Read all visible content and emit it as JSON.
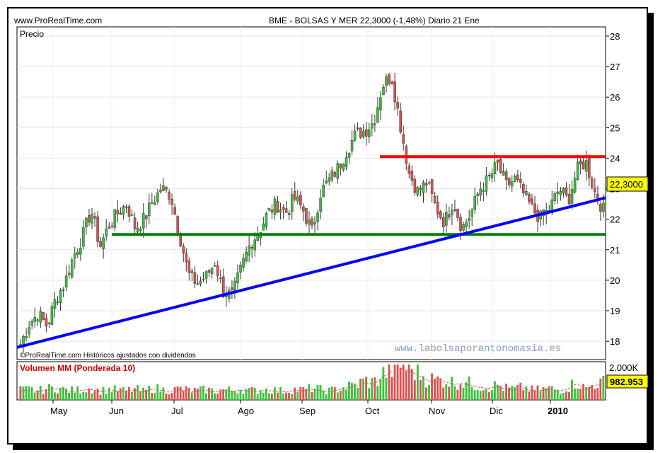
{
  "header": {
    "site": "www.ProRealTime.com",
    "title": "BME - BOLSAS Y MER    22,3000 (-1,48%)   Diario  21 Ene"
  },
  "main_panel": {
    "price_label": "Precio",
    "current_price": "22,3000",
    "footer_note": "©ProRealTime.com  Históricos ajustados con dividendos",
    "watermark": "www.labolsaporantonomasia.es"
  },
  "volume_panel": {
    "label": "Volumen MM (Ponderada 10)",
    "top_tick": "2.000K",
    "current_value": "982.953"
  },
  "colors": {
    "up": "#3cc13c",
    "down": "#d9534f",
    "resistance": "#ff0000",
    "support": "#008000",
    "trend": "#0000ff",
    "watermark": "#8a9cbf"
  },
  "chart_data": {
    "type": "candlestick",
    "x_labels": [
      "May",
      "Jun",
      "Jul",
      "Ago",
      "Sep",
      "Oct",
      "Nov",
      "Dic",
      "2010"
    ],
    "y_ticks": [
      18,
      19,
      20,
      21,
      22,
      23,
      24,
      25,
      26,
      27,
      28
    ],
    "ylim": [
      17.4,
      28.3
    ],
    "series_close_approx": [
      17.9,
      18.6,
      18.9,
      18.5,
      19.4,
      19.9,
      20.8,
      21.4,
      22.3,
      21.1,
      21.8,
      22.2,
      22.5,
      21.7,
      22.0,
      22.6,
      23.0,
      22.8,
      21.5,
      20.2,
      19.9,
      20.1,
      20.6,
      19.6,
      19.5,
      20.4,
      21.2,
      21.6,
      22.2,
      22.5,
      22.2,
      22.7,
      22.3,
      21.6,
      22.9,
      23.3,
      23.7,
      24.3,
      24.8,
      24.9,
      25.2,
      26.4,
      26.7,
      25.1,
      23.5,
      22.9,
      23.2,
      22.4,
      21.9,
      22.6,
      21.7,
      22.2,
      23.0,
      23.3,
      23.8,
      23.1,
      23.3,
      22.8,
      22.3,
      22.0,
      22.4,
      23.0,
      22.6,
      23.6,
      23.9,
      22.9,
      22.3
    ],
    "lines": [
      {
        "name": "resistance",
        "start": [
          "Oct",
          24.05
        ],
        "end": [
          "2010+",
          24.05
        ]
      },
      {
        "name": "support",
        "start": [
          "Jun",
          21.5
        ],
        "end": [
          "2010+",
          21.5
        ]
      },
      {
        "name": "trend",
        "start": [
          "May-",
          17.8
        ],
        "end": [
          "2010+",
          22.7
        ]
      }
    ],
    "volume_approx": [
      0.28,
      0.3,
      0.26,
      0.32,
      0.35,
      0.29,
      0.27,
      0.3,
      0.33,
      0.25,
      0.3,
      0.28,
      0.26,
      0.31,
      0.24,
      0.35,
      0.29,
      0.27,
      0.32,
      0.28,
      0.26,
      0.3,
      0.25,
      0.29,
      0.27,
      0.31,
      0.26,
      0.28,
      0.3,
      0.27,
      0.25,
      0.3,
      0.28,
      0.34,
      0.29,
      0.26,
      0.32,
      0.38,
      0.42,
      0.55,
      0.48,
      0.72,
      0.88,
      1.0,
      0.92,
      0.78,
      0.62,
      0.55,
      0.58,
      0.48,
      0.52,
      0.45,
      0.39,
      0.36,
      0.42,
      0.33,
      0.31,
      0.36,
      0.28,
      0.3,
      0.33,
      0.27,
      0.35,
      0.52,
      0.31,
      0.46,
      0.49
    ]
  }
}
